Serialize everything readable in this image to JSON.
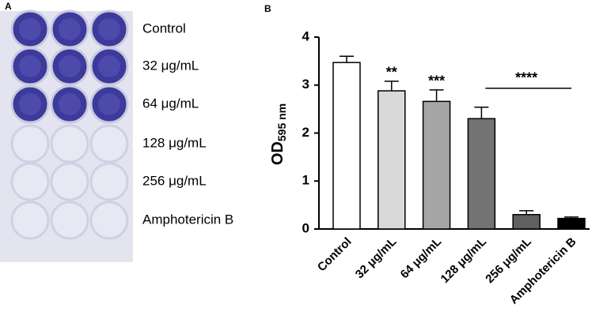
{
  "panel_a": {
    "label": "A",
    "rows": [
      "Control",
      "32 μg/mL",
      "64 μg/mL",
      "128 μg/mL",
      "256 μg/mL",
      "Amphotericin B"
    ]
  },
  "chart_data": {
    "type": "bar",
    "panel_label": "B",
    "y_label": "OD",
    "y_label_subscript": "595 nm",
    "categories": [
      "Control",
      "32 μg/mL",
      "64 μg/mL",
      "128 μg/mL",
      "256 μg/mL",
      "Amphotericin B"
    ],
    "values": [
      3.47,
      2.88,
      2.66,
      2.3,
      0.3,
      0.22
    ],
    "errors": [
      0.13,
      0.2,
      0.24,
      0.24,
      0.08,
      0.03
    ],
    "colors": [
      "#ffffff",
      "#d9d9d9",
      "#a6a6a6",
      "#737373",
      "#606060",
      "#000000"
    ],
    "ylim": [
      0,
      4
    ],
    "yticks": [
      0,
      1,
      2,
      3,
      4
    ],
    "annotations": [
      {
        "text": "**",
        "category": "32 μg/mL"
      },
      {
        "text": "***",
        "category": "64 μg/mL"
      },
      {
        "text": "****",
        "from": "128 μg/mL",
        "to": "Amphotericin B"
      }
    ]
  }
}
